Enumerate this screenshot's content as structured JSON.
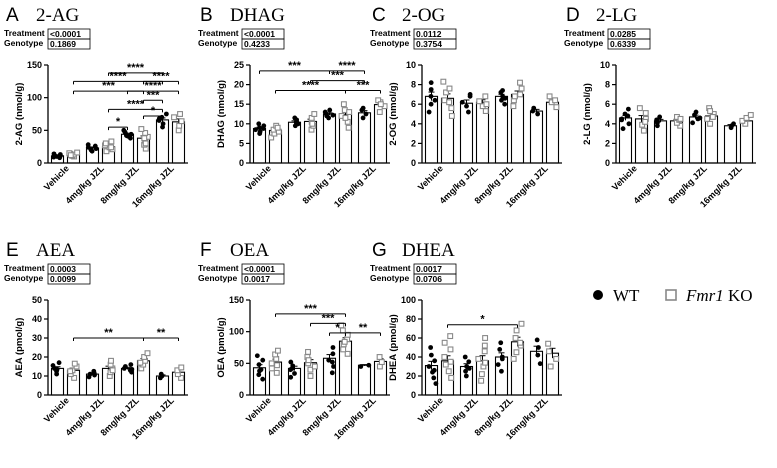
{
  "chart_data": {
    "legend": {
      "wt_label": "WT",
      "ko_gene": "Fmr1",
      "ko_suffix": " KO"
    },
    "panels": [
      {
        "letter": "A",
        "title": "2-AG",
        "ylabel": "2-AG (nmol/g)",
        "stats": [
          {
            "label": "Treatment",
            "value": "<0.0001"
          },
          {
            "label": "Genotype",
            "value": "0.1869"
          }
        ],
        "ylim": [
          0,
          150
        ],
        "ticks": [
          0,
          50,
          100,
          150
        ],
        "categories": [
          "Vehicle",
          "4mg/kg JZL",
          "8mg/kg JZL",
          "16mg/kg JZL"
        ],
        "series": [
          {
            "name": "WT",
            "values": [
              11,
              23,
              44,
              66
            ],
            "points": [
              [
                8,
                9,
                10,
                11,
                12,
                13,
                14
              ],
              [
                18,
                20,
                22,
                24,
                26,
                28
              ],
              [
                38,
                41,
                44,
                46,
                48,
                50,
                42
              ],
              [
                55,
                60,
                65,
                70,
                75,
                68
              ]
            ]
          },
          {
            "name": "Fmr1 KO",
            "values": [
              13,
              25,
              38,
              63
            ],
            "points": [
              [
                10,
                11,
                12,
                13,
                14,
                15,
                16,
                12
              ],
              [
                18,
                21,
                24,
                27,
                30,
                33,
                24
              ],
              [
                22,
                28,
                34,
                40,
                46,
                52,
                30,
                38
              ],
              [
                50,
                57,
                64,
                70,
                75
              ]
            ]
          }
        ],
        "sig": [
          {
            "label": "****",
            "from": 3,
            "to": 6,
            "y": 138
          },
          {
            "label": "****",
            "from": 1,
            "to": 6,
            "y": 125
          },
          {
            "label": "***",
            "from": 1,
            "to": 5,
            "y": 110
          },
          {
            "label": "****",
            "from": 5,
            "to": 7,
            "y": 125
          },
          {
            "label": "****",
            "from": 4,
            "to": 7,
            "y": 110
          },
          {
            "label": "***",
            "from": 5,
            "to": 6,
            "y": 96
          },
          {
            "label": "****",
            "from": 3,
            "to": 6,
            "y": 82
          },
          {
            "label": "*",
            "from": 5,
            "to": 6,
            "y": 72
          },
          {
            "label": "*",
            "from": 3,
            "to": 4,
            "y": 55
          }
        ]
      },
      {
        "letter": "B",
        "title": "DHAG",
        "ylabel": "DHAG (nmol/g)",
        "stats": [
          {
            "label": "Treatment",
            "value": "<0.0001"
          },
          {
            "label": "Genotype",
            "value": "0.4233"
          }
        ],
        "ylim": [
          0,
          25
        ],
        "ticks": [
          0,
          5,
          10,
          15,
          20,
          25
        ],
        "categories": [
          "Vehicle",
          "4mg/kg JZL",
          "8mg/kg JZL",
          "16mg/kg JZL"
        ],
        "series": [
          {
            "name": "WT",
            "values": [
              8.8,
              10.4,
              12.5,
              12.8
            ],
            "points": [
              [
                7.5,
                8,
                8.5,
                9,
                9.5,
                10,
                8.8
              ],
              [
                9.5,
                10,
                10.5,
                11,
                11.5
              ],
              [
                11.5,
                12,
                12.5,
                13,
                13.5,
                12.2
              ],
              [
                11.5,
                12.5,
                13.5,
                14
              ]
            ]
          },
          {
            "name": "Fmr1 KO",
            "values": [
              8.3,
              10.6,
              12.4,
              14.9
            ],
            "points": [
              [
                6.5,
                7.5,
                8.5,
                9.5,
                8,
                9
              ],
              [
                8.5,
                9.5,
                10.5,
                11.5,
                12.5,
                10
              ],
              [
                9,
                10.5,
                12,
                13.5,
                15,
                11.5,
                13
              ],
              [
                13,
                14.5,
                15.5,
                16,
                15
              ]
            ]
          }
        ],
        "sig": [
          {
            "label": "***",
            "from": 0,
            "to": 4,
            "y": 23.5
          },
          {
            "label": "****",
            "from": 4,
            "to": 6,
            "y": 23.5
          },
          {
            "label": "***",
            "from": 3,
            "to": 6,
            "y": 21
          },
          {
            "label": "****",
            "from": 1,
            "to": 5,
            "y": 18.5
          },
          {
            "label": "***",
            "from": 5,
            "to": 7,
            "y": 18.5
          }
        ]
      },
      {
        "letter": "C",
        "title": "2-OG",
        "ylabel": "2-OG (nmol/g)",
        "stats": [
          {
            "label": "Treatment",
            "value": "0.0112"
          },
          {
            "label": "Genotype",
            "value": "0.3754"
          }
        ],
        "ylim": [
          0,
          10
        ],
        "ticks": [
          0,
          2,
          4,
          6,
          8,
          10
        ],
        "categories": [
          "Vehicle",
          "4mg/kg JZL",
          "8mg/kg JZL",
          "16mg/kg JZL"
        ],
        "series": [
          {
            "name": "WT",
            "values": [
              6.8,
              6.1,
              6.8,
              5.3
            ],
            "points": [
              [
                5.2,
                6,
                6.8,
                7.5,
                8.2,
                6.4
              ],
              [
                5.2,
                5.8,
                6.2,
                6.8,
                7
              ],
              [
                6,
                6.4,
                6.8,
                7.2,
                7.4,
                6.6
              ],
              [
                5,
                5.3,
                5.6
              ]
            ]
          },
          {
            "name": "Fmr1 KO",
            "values": [
              6.6,
              6.2,
              7.0,
              6.2
            ],
            "points": [
              [
                4.8,
                5.6,
                6.4,
                7.2,
                8.3,
                6.2,
                7.6
              ],
              [
                5.3,
                5.8,
                6.3,
                6.8,
                6
              ],
              [
                5.8,
                6.4,
                7,
                7.6,
                8.2,
                6.8
              ],
              [
                5.7,
                6.2,
                6.8,
                6.4
              ]
            ]
          }
        ],
        "sig": []
      },
      {
        "letter": "D",
        "title": "2-LG",
        "ylabel": "2-LG (nmol/g)",
        "stats": [
          {
            "label": "Treatment",
            "value": "0.0285"
          },
          {
            "label": "Genotype",
            "value": "0.6339"
          }
        ],
        "ylim": [
          0,
          10
        ],
        "ticks": [
          0,
          2,
          4,
          6,
          8,
          10
        ],
        "categories": [
          "Vehicle",
          "4mg/kg JZL",
          "8mg/kg JZL",
          "16mg/kg JZL"
        ],
        "series": [
          {
            "name": "WT",
            "values": [
              4.6,
              4.3,
              4.7,
              3.8
            ],
            "points": [
              [
                3.5,
                4,
                4.5,
                5,
                5.5,
                4.4,
                4.8
              ],
              [
                3.8,
                4.1,
                4.4,
                4.7,
                4.2
              ],
              [
                4.1,
                4.5,
                4.9,
                5.2,
                4.6
              ],
              [
                3.6,
                3.8,
                4
              ]
            ]
          },
          {
            "name": "Fmr1 KO",
            "values": [
              4.5,
              4.3,
              4.8,
              4.3
            ],
            "points": [
              [
                3.3,
                3.9,
                4.5,
                5.1,
                5.6,
                4.2
              ],
              [
                3.8,
                4.1,
                4.4,
                4.7,
                4.5
              ],
              [
                4,
                4.5,
                5,
                5.6,
                4.7,
                5.3
              ],
              [
                4,
                4.3,
                4.6,
                4.9
              ]
            ]
          }
        ],
        "sig": []
      },
      {
        "letter": "E",
        "title": "AEA",
        "ylabel": "AEA (pmol/g)",
        "stats": [
          {
            "label": "Treatment",
            "value": "0.0003"
          },
          {
            "label": "Genotype",
            "value": "0.0099"
          }
        ],
        "ylim": [
          0,
          50
        ],
        "ticks": [
          0,
          10,
          20,
          30,
          40,
          50
        ],
        "categories": [
          "Vehicle",
          "4mg/kg JZL",
          "8mg/kg JZL",
          "16mg/kg JZL"
        ],
        "series": [
          {
            "name": "WT",
            "values": [
              14,
              11,
              14,
              10
            ],
            "points": [
              [
                11,
                12.5,
                14,
                15.5,
                17,
                13.5
              ],
              [
                9.5,
                10.5,
                11.5,
                12.5,
                11
              ],
              [
                12,
                13,
                14,
                15,
                16,
                13.5
              ],
              [
                9,
                10,
                11
              ]
            ]
          },
          {
            "name": "Fmr1 KO",
            "values": [
              13,
              14,
              18,
              12
            ],
            "points": [
              [
                9,
                11,
                13,
                15,
                16.5,
                12.5
              ],
              [
                10,
                12,
                14,
                16,
                18,
                13
              ],
              [
                14,
                16,
                18,
                20,
                22,
                17
              ],
              [
                9,
                11,
                13,
                14.5
              ]
            ]
          }
        ],
        "sig": [
          {
            "label": "**",
            "from": 1,
            "to": 5,
            "y": 30
          },
          {
            "label": "**",
            "from": 5,
            "to": 7,
            "y": 30
          }
        ]
      },
      {
        "letter": "F",
        "title": "OEA",
        "ylabel": "OEA (pmol/g)",
        "stats": [
          {
            "label": "Treatment",
            "value": "<0.0001"
          },
          {
            "label": "Genotype",
            "value": "0.0017"
          }
        ],
        "ylim": [
          0,
          150
        ],
        "ticks": [
          0,
          50,
          100,
          150
        ],
        "categories": [
          "Vehicle",
          "4mg/kg JZL",
          "8mg/kg JZL",
          "16mg/kg JZL"
        ],
        "series": [
          {
            "name": "WT",
            "values": [
              43,
              42,
              58,
              47
            ],
            "points": [
              [
                25,
                32,
                40,
                48,
                55,
                62,
                38
              ],
              [
                28,
                34,
                40,
                46,
                52,
                42
              ],
              [
                35,
                45,
                55,
                65,
                75,
                52
              ],
              [
                45,
                47
              ]
            ]
          },
          {
            "name": "Fmr1 KO",
            "values": [
              52,
              51,
              85,
              53
            ],
            "points": [
              [
                35,
                42,
                50,
                57,
                64,
                70,
                47
              ],
              [
                30,
                40,
                50,
                60,
                68,
                45,
                55
              ],
              [
                65,
                72,
                80,
                88,
                95,
                102,
                110,
                84
              ],
              [
                45,
                52,
                60
              ]
            ]
          }
        ],
        "sig": [
          {
            "label": "***",
            "from": 1,
            "to": 5,
            "y": 128
          },
          {
            "label": "***",
            "from": 3,
            "to": 5,
            "y": 113
          },
          {
            "label": "*",
            "from": 4,
            "to": 5,
            "y": 98
          },
          {
            "label": "**",
            "from": 5,
            "to": 7,
            "y": 98
          }
        ]
      },
      {
        "letter": "G",
        "title": "DHEA",
        "ylabel": "DHEA (pmol/g)",
        "stats": [
          {
            "label": "Treatment",
            "value": "0.0017"
          },
          {
            "label": "Genotype",
            "value": "0.0706"
          }
        ],
        "ylim": [
          0,
          100
        ],
        "ticks": [
          0,
          20,
          40,
          60,
          80,
          100
        ],
        "categories": [
          "Vehicle",
          "4mg/kg JZL",
          "8mg/kg JZL",
          "16mg/kg JZL"
        ],
        "series": [
          {
            "name": "WT",
            "values": [
              31,
              30,
              40,
              46
            ],
            "points": [
              [
                12,
                18,
                24,
                30,
                36,
                42,
                50,
                26
              ],
              [
                20,
                25,
                30,
                35,
                40,
                28
              ],
              [
                25,
                32,
                40,
                48,
                55,
                38
              ],
              [
                33,
                42,
                50,
                58
              ]
            ]
          },
          {
            "name": "Fmr1 KO",
            "values": [
              36,
              36,
              56,
              44
            ],
            "points": [
              [
                18,
                25,
                32,
                40,
                48,
                55,
                62,
                35
              ],
              [
                15,
                22,
                30,
                38,
                46,
                52,
                60,
                34
              ],
              [
                38,
                45,
                52,
                60,
                68,
                75,
                55
              ],
              [
                30,
                38,
                46,
                54
              ]
            ]
          }
        ],
        "sig": [
          {
            "label": "*",
            "from": 1,
            "to": 5,
            "y": 74
          }
        ]
      }
    ]
  }
}
